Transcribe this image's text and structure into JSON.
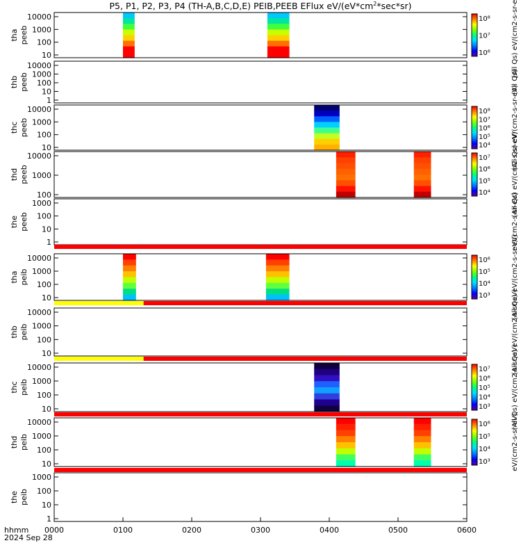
{
  "chart_data": {
    "type": "heatmap",
    "title": "P5, P1, P2, P3, P4 (TH-A,B,C,D,E) PEIB,PEEB EFlux eV/(eV*cm",
    "title_sup": "2",
    "title_tail": "*sec*sr)",
    "x_axis": {
      "label": "hhmm",
      "date": "2024 Sep 28",
      "ticks": [
        "0000",
        "0100",
        "0200",
        "0300",
        "0400",
        "0500",
        "0600"
      ],
      "range_hours": [
        0,
        6
      ]
    },
    "panels": [
      {
        "id": "tha_peeb",
        "label1": "tha",
        "label2": "peeb",
        "yticks": [
          "10",
          "100",
          "1000",
          "10000"
        ],
        "cbar": {
          "ticks": [
            "10⁶",
            "10⁷",
            "10⁸"
          ],
          "label": "(All Qs) eV/(cm2-s-sr-eV)"
        },
        "blocks": [
          {
            "start": 1.0,
            "end": 1.17,
            "palette": "hot_low"
          },
          {
            "start": 3.1,
            "end": 3.42,
            "palette": "hot_low"
          }
        ]
      },
      {
        "id": "thb_peeb",
        "label1": "thb",
        "label2": "peeb",
        "yticks": [
          "1",
          "10",
          "100",
          "1000",
          "10000"
        ],
        "cbar": {
          "ticks": [],
          "label": "(All Qs)"
        },
        "blocks": []
      },
      {
        "id": "thc_peeb",
        "label1": "thc",
        "label2": "peeb",
        "yticks": [
          "10",
          "100",
          "1000",
          "10000"
        ],
        "cbar": {
          "ticks": [
            "10⁴",
            "10⁵",
            "10⁶",
            "10⁷",
            "10⁸"
          ],
          "label": "(All Qs) eV/(cm2-s-sr-eV)"
        },
        "blocks": [
          {
            "start": 3.78,
            "end": 4.15,
            "palette": "cold_top"
          }
        ]
      },
      {
        "id": "thd_peeb",
        "label1": "thd",
        "label2": "peeb",
        "yticks": [
          "100",
          "1000",
          "10000"
        ],
        "cbar": {
          "ticks": [
            "10⁴",
            "10⁵",
            "10⁶",
            "10⁷"
          ],
          "label": "(All Qs) eV/(cm2-s-sr-eV)"
        },
        "blocks": [
          {
            "start": 4.1,
            "end": 4.38,
            "palette": "red_body"
          },
          {
            "start": 5.23,
            "end": 5.48,
            "palette": "red_body"
          }
        ]
      },
      {
        "id": "the_peeb",
        "label1": "the",
        "label2": "peeb",
        "yticks": [
          "1",
          "10",
          "100",
          "1000"
        ],
        "cbar": {
          "ticks": [],
          "label": "eV/(cm2-s-sr-eV)"
        },
        "blocks": []
      },
      {
        "id": "tha_peib",
        "label1": "tha",
        "label2": "peib",
        "yticks": [
          "10",
          "100",
          "1000",
          "10000"
        ],
        "cbar": {
          "ticks": [
            "10³",
            "10⁴",
            "10⁵",
            "10⁶"
          ],
          "label": "(All Qs) eV/(cm2-s-sr-eV)"
        },
        "blocks": [
          {
            "start": 1.0,
            "end": 1.19,
            "palette": "ion_red_green"
          },
          {
            "start": 3.08,
            "end": 3.42,
            "palette": "ion_red_green"
          }
        ]
      },
      {
        "id": "thb_peib",
        "label1": "thb",
        "label2": "peib",
        "yticks": [
          "10",
          "100",
          "1000",
          "10000"
        ],
        "cbar": {
          "ticks": [],
          "label": "(All Qs) eV/(cm2-s-sr-eV)"
        },
        "blocks": []
      },
      {
        "id": "thc_peib",
        "label1": "thc",
        "label2": "peib",
        "yticks": [
          "10",
          "100",
          "1000",
          "10000"
        ],
        "cbar": {
          "ticks": [
            "10³",
            "10⁴",
            "10⁵",
            "10⁶",
            "10⁷"
          ],
          "label": "(All Qs) eV/(cm2-s-sr-eV)"
        },
        "blocks": [
          {
            "start": 3.78,
            "end": 4.15,
            "palette": "cold_ion"
          }
        ]
      },
      {
        "id": "thd_peib",
        "label1": "thd",
        "label2": "peib",
        "yticks": [
          "10",
          "100",
          "1000",
          "10000"
        ],
        "cbar": {
          "ticks": [
            "10³",
            "10⁴",
            "10⁵",
            "10⁶"
          ],
          "label": "eV/(cm2-s-sr-eV)"
        },
        "blocks": [
          {
            "start": 4.1,
            "end": 4.38,
            "palette": "red_green"
          },
          {
            "start": 5.23,
            "end": 5.48,
            "palette": "red_green"
          }
        ]
      },
      {
        "id": "the_peib",
        "label1": "the",
        "label2": "peib",
        "yticks": [
          "1",
          "10",
          "100",
          "1000"
        ],
        "cbar": {
          "ticks": [],
          "label": ""
        },
        "blocks": []
      }
    ],
    "status_bars": [
      {
        "after_panel": 4,
        "segments": [
          {
            "start": 0,
            "end": 6,
            "color": "#ff0000"
          }
        ]
      },
      {
        "after_panel": 5,
        "segments": [
          {
            "start": 0,
            "end": 1.3,
            "color": "#ffff00"
          },
          {
            "start": 1.3,
            "end": 6,
            "color": "#ff0000"
          }
        ]
      },
      {
        "after_panel": 6,
        "segments": [
          {
            "start": 0,
            "end": 1.3,
            "color": "#ffff00"
          },
          {
            "start": 1.3,
            "end": 6,
            "color": "#ff0000"
          }
        ]
      },
      {
        "after_panel": 7,
        "segments": [
          {
            "start": 0,
            "end": 6,
            "color": "#ff0000"
          }
        ]
      },
      {
        "after_panel": 8,
        "segments": [
          {
            "start": 0,
            "end": 6,
            "color": "#ff0000"
          }
        ]
      }
    ]
  }
}
